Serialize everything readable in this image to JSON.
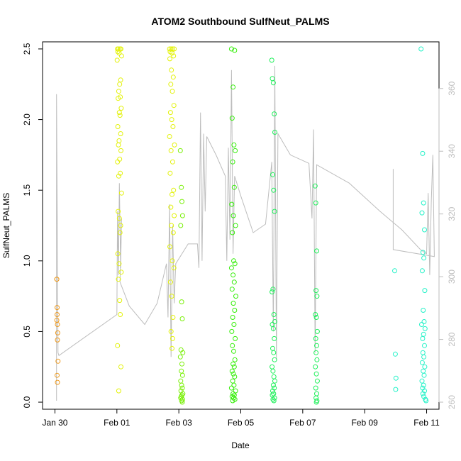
{
  "chart_data": {
    "type": "scatter",
    "title": "ATOM2 Southbound SulfNeut_PALMS",
    "xlabel": "Date",
    "ylabel": "SulfNeut_PALMS",
    "x_unit": "days since Jan 28 00:00",
    "xlim": [
      1.6,
      14.4
    ],
    "ylim": [
      -0.05,
      2.55
    ],
    "x_ticks": [
      {
        "value": 2,
        "label": "Jan 30"
      },
      {
        "value": 4,
        "label": "Feb 01"
      },
      {
        "value": 6,
        "label": "Feb 03"
      },
      {
        "value": 8,
        "label": "Feb 05"
      },
      {
        "value": 10,
        "label": "Feb 07"
      },
      {
        "value": 12,
        "label": "Feb 09"
      },
      {
        "value": 14,
        "label": "Feb 11"
      }
    ],
    "y_ticks": [
      {
        "value": 0.0,
        "label": "0.0"
      },
      {
        "value": 0.5,
        "label": "0.5"
      },
      {
        "value": 1.0,
        "label": "1.0"
      },
      {
        "value": 1.5,
        "label": "1.5"
      },
      {
        "value": 2.0,
        "label": "2.0"
      },
      {
        "value": 2.5,
        "label": "2.5"
      }
    ],
    "y2_ticks": [
      {
        "value": 260,
        "label": "260"
      },
      {
        "value": 280,
        "label": "280"
      },
      {
        "value": 300,
        "label": "300"
      },
      {
        "value": 320,
        "label": "320"
      },
      {
        "value": 340,
        "label": "340"
      },
      {
        "value": 360,
        "label": "360"
      }
    ],
    "y2_map": {
      "v1": 260,
      "y1": 0.0,
      "v2": 360,
      "y2": 2.22
    },
    "colors": {
      "trace": "#bdbdbd",
      "axis_right": "#bdbdbd",
      "flight_colors": [
        "#ee9a1e",
        "#e3f20a",
        "#7bf00a",
        "#36ee0a",
        "#1ef05a",
        "#25f2c8"
      ]
    },
    "trace": [
      [
        2.05,
        0.01
      ],
      [
        2.05,
        2.18
      ],
      [
        2.1,
        0.35
      ],
      [
        2.13,
        0.33
      ],
      [
        4.0,
        0.62
      ],
      [
        4.02,
        1.35
      ],
      [
        4.05,
        0.9
      ],
      [
        4.08,
        1.55
      ],
      [
        4.12,
        0.95
      ],
      [
        4.15,
        1.3
      ],
      [
        4.1,
        0.85
      ],
      [
        4.4,
        0.68
      ],
      [
        4.9,
        0.55
      ],
      [
        5.3,
        0.7
      ],
      [
        5.6,
        0.98
      ],
      [
        5.65,
        0.6
      ],
      [
        5.7,
        1.4
      ],
      [
        5.75,
        0.32
      ],
      [
        5.8,
        1.25
      ],
      [
        5.85,
        0.7
      ],
      [
        5.9,
        0.98
      ],
      [
        6.3,
        1.12
      ],
      [
        6.6,
        1.12
      ],
      [
        6.65,
        0.95
      ],
      [
        6.7,
        2.05
      ],
      [
        6.75,
        1.0
      ],
      [
        6.8,
        1.9
      ],
      [
        6.85,
        1.35
      ],
      [
        6.9,
        1.88
      ],
      [
        7.2,
        1.75
      ],
      [
        7.5,
        1.6
      ],
      [
        7.55,
        1.0
      ],
      [
        7.6,
        1.8
      ],
      [
        7.65,
        1.15
      ],
      [
        7.7,
        2.35
      ],
      [
        7.75,
        1.05
      ],
      [
        7.8,
        1.6
      ],
      [
        8.0,
        1.46
      ],
      [
        8.4,
        1.2
      ],
      [
        8.8,
        1.26
      ],
      [
        9.0,
        1.7
      ],
      [
        9.05,
        0.5
      ],
      [
        9.1,
        2.38
      ],
      [
        9.15,
        0.3
      ],
      [
        9.2,
        1.9
      ],
      [
        9.6,
        1.75
      ],
      [
        10.2,
        1.69
      ],
      [
        10.3,
        1.3
      ],
      [
        10.35,
        1.93
      ],
      [
        10.4,
        0.35
      ],
      [
        10.45,
        1.68
      ],
      [
        11.5,
        1.55
      ],
      [
        12.5,
        1.35
      ],
      [
        13.2,
        1.22
      ],
      [
        13.8,
        1.08
      ],
      [
        14.0,
        1.05
      ],
      [
        14.05,
        1.48
      ],
      [
        14.1,
        0.9
      ],
      [
        14.15,
        1.42
      ],
      [
        14.2,
        1.75
      ],
      [
        14.25,
        1.03
      ],
      [
        12.92,
        1.08
      ],
      [
        12.92,
        1.65
      ]
    ],
    "series": [
      {
        "color": "#ee9a1e",
        "x": [
          2.06,
          2.06,
          2.07,
          2.07,
          2.06,
          2.08,
          2.09,
          2.08,
          2.1,
          2.07,
          2.08
        ],
        "y": [
          0.87,
          0.87,
          0.67,
          0.62,
          0.58,
          0.55,
          0.49,
          0.44,
          0.29,
          0.19,
          0.14
        ]
      },
      {
        "color": "#e3f20a",
        "x": [
          4.02,
          4.05,
          4.1,
          4.13,
          4.03,
          4.07,
          4.15,
          4.01,
          4.12,
          4.09,
          4.06,
          4.11,
          4.04,
          4.14,
          4.08,
          4.1,
          4.03,
          4.12,
          4.07,
          4.05,
          4.13,
          4.09,
          4.02,
          4.11,
          4.06,
          4.15,
          4.04,
          4.08,
          4.12,
          4.1,
          4.03,
          4.07,
          4.14,
          4.05,
          4.09,
          4.11,
          4.02,
          4.13,
          4.06
        ],
        "y": [
          2.5,
          2.5,
          2.5,
          2.5,
          2.48,
          2.47,
          2.45,
          2.42,
          2.28,
          2.25,
          2.2,
          2.16,
          2.15,
          2.08,
          2.05,
          2.03,
          1.95,
          1.9,
          1.85,
          1.82,
          1.78,
          1.72,
          1.7,
          1.62,
          1.6,
          1.48,
          1.35,
          1.3,
          1.25,
          1.2,
          1.05,
          0.98,
          0.92,
          0.87,
          0.72,
          0.62,
          0.4,
          0.25,
          0.08
        ]
      },
      {
        "color": "#e3f20a",
        "x": [
          5.7,
          5.75,
          5.8,
          5.85,
          5.72,
          5.78,
          5.83,
          5.71,
          5.76,
          5.82,
          5.74,
          5.79,
          5.84,
          5.73,
          5.77,
          5.81,
          5.7,
          5.86,
          5.75,
          5.8,
          5.72,
          5.83,
          5.78,
          5.74,
          5.85,
          5.76,
          5.82,
          5.71,
          5.79,
          5.84,
          5.73,
          5.77,
          5.81,
          5.75,
          5.8,
          5.78
        ],
        "y": [
          2.5,
          2.5,
          2.5,
          2.5,
          2.48,
          2.47,
          2.45,
          2.43,
          2.35,
          2.3,
          2.25,
          2.2,
          2.1,
          2.05,
          2.0,
          1.95,
          1.88,
          1.82,
          1.78,
          1.7,
          1.62,
          1.5,
          1.47,
          1.38,
          1.32,
          1.25,
          1.2,
          1.1,
          1.0,
          0.95,
          0.85,
          0.75,
          0.6,
          0.5,
          0.45,
          0.38
        ]
      },
      {
        "color": "#7bf00a",
        "x": [
          6.05,
          6.08,
          6.1,
          6.12,
          6.06,
          6.09,
          6.11,
          6.07,
          6.13,
          6.05,
          6.1,
          6.08,
          6.12,
          6.06,
          6.09,
          6.11,
          6.07,
          6.13,
          6.1,
          6.08,
          6.06,
          6.12,
          6.09,
          6.11
        ],
        "y": [
          1.78,
          1.52,
          1.42,
          1.32,
          1.25,
          0.71,
          0.59,
          0.37,
          0.35,
          0.32,
          0.27,
          0.22,
          0.19,
          0.15,
          0.12,
          0.1,
          0.08,
          0.06,
          0.05,
          0.04,
          0.03,
          0.02,
          0.01,
          0.0
        ]
      },
      {
        "color": "#36ee0a",
        "x": [
          7.7,
          7.8,
          7.75,
          7.72,
          7.78,
          7.82,
          7.74,
          7.79,
          7.71,
          7.76,
          7.83,
          7.73,
          7.77,
          7.81,
          7.7,
          7.75,
          7.79,
          7.72,
          7.84,
          7.76,
          7.8,
          7.74,
          7.78,
          7.71,
          7.82,
          7.73,
          7.77,
          7.81,
          7.75,
          7.79,
          7.72,
          7.76,
          7.8,
          7.74,
          7.78,
          7.7,
          7.83,
          7.75,
          7.79,
          7.72,
          7.77,
          7.81,
          7.74
        ],
        "y": [
          2.5,
          2.49,
          2.23,
          2.01,
          1.82,
          1.78,
          1.7,
          1.52,
          1.4,
          1.32,
          1.25,
          1.2,
          1.0,
          0.98,
          0.95,
          0.9,
          0.85,
          0.8,
          0.75,
          0.7,
          0.65,
          0.6,
          0.55,
          0.5,
          0.45,
          0.4,
          0.36,
          0.3,
          0.27,
          0.25,
          0.22,
          0.2,
          0.18,
          0.15,
          0.12,
          0.1,
          0.08,
          0.06,
          0.05,
          0.04,
          0.03,
          0.02,
          0.01
        ]
      },
      {
        "color": "#1ef05a",
        "x": [
          9.0,
          9.02,
          9.05,
          9.08,
          9.1,
          9.03,
          9.06,
          9.09,
          9.01,
          9.04,
          9.07,
          9.1,
          9.02,
          9.05,
          9.08,
          9.03,
          9.06,
          9.09,
          9.01,
          9.04,
          9.07,
          9.1,
          9.05,
          9.08,
          9.03,
          9.06,
          9.02,
          9.09,
          9.04,
          9.07,
          10.4,
          10.42,
          10.45,
          10.43,
          10.46,
          10.41,
          10.44,
          10.47,
          10.42,
          10.45,
          10.43,
          10.46,
          10.41,
          10.44,
          10.47,
          10.42,
          10.45,
          10.43,
          10.46,
          10.44
        ],
        "y": [
          2.42,
          2.29,
          2.26,
          2.04,
          1.91,
          1.61,
          1.5,
          1.35,
          0.78,
          0.8,
          0.62,
          0.57,
          0.55,
          0.52,
          0.45,
          0.38,
          0.35,
          0.3,
          0.25,
          0.22,
          0.18,
          0.15,
          0.12,
          0.1,
          0.08,
          0.06,
          0.05,
          0.03,
          0.02,
          0.01,
          1.53,
          1.41,
          1.07,
          0.79,
          0.75,
          0.62,
          0.6,
          0.5,
          0.45,
          0.4,
          0.35,
          0.3,
          0.25,
          0.2,
          0.15,
          0.1,
          0.06,
          0.03,
          0.01,
          0.0
        ]
      },
      {
        "color": "#25f2c8",
        "x": [
          12.97,
          12.99,
          13.01,
          13.0,
          13.82,
          13.87,
          13.9,
          13.85,
          13.93,
          13.88,
          13.91,
          13.86,
          13.94,
          13.89,
          13.92,
          13.84,
          13.95,
          13.9,
          13.87,
          13.93,
          13.88,
          13.91,
          13.86,
          13.94,
          13.89,
          13.92,
          13.85,
          13.9,
          13.87,
          13.93,
          13.88,
          13.91,
          13.96,
          13.98
        ],
        "y": [
          0.93,
          0.34,
          0.17,
          0.09,
          2.5,
          1.76,
          1.41,
          1.34,
          1.22,
          1.06,
          1.02,
          0.93,
          0.79,
          0.65,
          0.57,
          0.55,
          0.52,
          0.48,
          0.45,
          0.4,
          0.35,
          0.32,
          0.28,
          0.25,
          0.22,
          0.19,
          0.15,
          0.12,
          0.1,
          0.08,
          0.06,
          0.04,
          0.02,
          0.01
        ]
      }
    ]
  }
}
